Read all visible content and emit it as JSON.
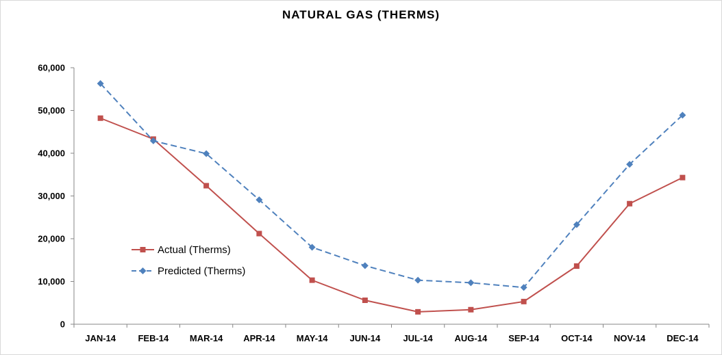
{
  "chart_data": {
    "type": "line",
    "title": "NATURAL GAS (THERMS)",
    "xlabel": "",
    "ylabel": "",
    "categories": [
      "JAN-14",
      "FEB-14",
      "MAR-14",
      "APR-14",
      "MAY-14",
      "JUN-14",
      "JUL-14",
      "AUG-14",
      "SEP-14",
      "OCT-14",
      "NOV-14",
      "DEC-14"
    ],
    "ylim": [
      0,
      60000
    ],
    "yticks": [
      "0",
      "10,000",
      "20,000",
      "30,000",
      "40,000",
      "50,000",
      "60,000"
    ],
    "grid": false,
    "legend_position": "center-left",
    "series": [
      {
        "name": "Actual (Therms)",
        "color": "#c0504d",
        "line_style": "solid",
        "marker": "square",
        "values": [
          48200,
          43300,
          32400,
          21200,
          10300,
          5600,
          2900,
          3400,
          5300,
          13600,
          28200,
          34300
        ]
      },
      {
        "name": "Predicted (Therms)",
        "color": "#4f81bd",
        "line_style": "dashed",
        "marker": "diamond",
        "values": [
          56300,
          42900,
          39900,
          29100,
          18000,
          13700,
          10300,
          9700,
          8600,
          23300,
          37400,
          48900
        ]
      }
    ]
  }
}
